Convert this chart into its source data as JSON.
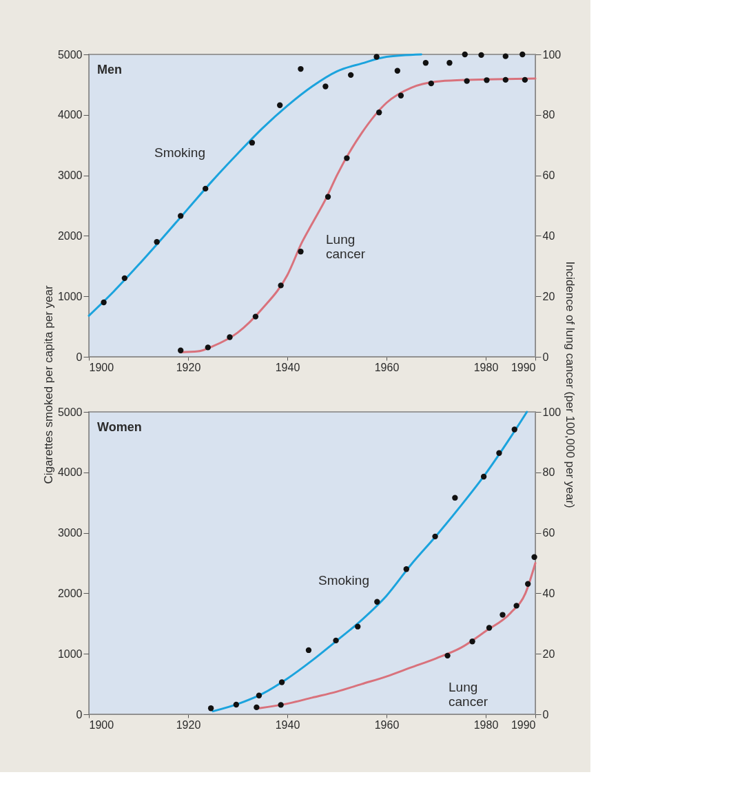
{
  "chart_data": [
    {
      "type": "line",
      "title": "Men",
      "ylabel": "Cigarettes smoked per capita per year",
      "y2label": "Incidence of lung cancer (per 100,000 per year)",
      "xlim": [
        1900,
        1990
      ],
      "xticks": [
        1900,
        1920,
        1940,
        1960,
        1980,
        1990
      ],
      "ylim": [
        0,
        5000
      ],
      "yticks": [
        0,
        1000,
        2000,
        3000,
        4000,
        5000
      ],
      "y2lim": [
        0,
        100
      ],
      "y2ticks": [
        0,
        20,
        40,
        60,
        80,
        100
      ],
      "grid": false,
      "line_style": "solid",
      "series": [
        {
          "name": "Smoking",
          "marker": "none",
          "color": "#1ba3dd",
          "x": [
            1900,
            1905,
            1910,
            1915,
            1920,
            1925,
            1930,
            1935,
            1940,
            1945,
            1950,
            1955,
            1960,
            1967
          ],
          "values": [
            680,
            1080,
            1520,
            1980,
            2450,
            2920,
            3360,
            3780,
            4150,
            4470,
            4720,
            4850,
            4960,
            5000
          ]
        },
        {
          "type": "scatter",
          "marker": "circle",
          "color": "#111111",
          "x": [
            1903,
            1907.2,
            1913.7,
            1918.5,
            1923.5,
            1932.9,
            1938.5,
            1942.7,
            1947.7,
            1952.8,
            1958,
            1962.2,
            1967.9,
            1972.7,
            1975.8,
            1979.1,
            1984,
            1987.4
          ],
          "values": [
            900,
            1300,
            1900,
            2330,
            2780,
            3540,
            4160,
            4760,
            4470,
            4660,
            4960,
            4730,
            4860,
            4860,
            5000,
            4990,
            4970,
            5000
          ]
        },
        {
          "name": "Lung cancer",
          "axis": "y2",
          "marker": "none",
          "color": "#d9727c",
          "x": [
            1918.5,
            1922,
            1925,
            1930,
            1935,
            1940,
            1943,
            1945,
            1948,
            1950,
            1955,
            1960,
            1965,
            1970,
            1975,
            1990
          ],
          "values": [
            1.5,
            1.8,
            3.5,
            8,
            16,
            27,
            38,
            44,
            53,
            60,
            74,
            84,
            89,
            91,
            91.5,
            92
          ]
        },
        {
          "type": "scatter",
          "axis": "y2",
          "marker": "circle",
          "color": "#111111",
          "x": [
            1918.5,
            1924,
            1928.4,
            1933.6,
            1938.7,
            1942.7,
            1948.2,
            1952,
            1958.5,
            1962.9,
            1969,
            1976.2,
            1980.2,
            1984,
            1987.9
          ],
          "values": [
            2.1,
            3.1,
            6.5,
            13.3,
            23.6,
            34.8,
            52.9,
            65.7,
            80.8,
            86.4,
            90.4,
            91.2,
            91.5,
            91.6,
            91.6
          ]
        }
      ]
    },
    {
      "type": "line",
      "title": "Women",
      "xlim": [
        1900,
        1990
      ],
      "xticks": [
        1900,
        1920,
        1940,
        1960,
        1980,
        1990
      ],
      "ylim": [
        0,
        5000
      ],
      "yticks": [
        0,
        1000,
        2000,
        3000,
        4000,
        5000
      ],
      "y2lim": [
        0,
        100
      ],
      "y2ticks": [
        0,
        20,
        40,
        60,
        80,
        100
      ],
      "grid": false,
      "line_style": "solid",
      "series": [
        {
          "name": "Smoking",
          "marker": "none",
          "color": "#1ba3dd",
          "x": [
            1925,
            1930,
            1935,
            1940,
            1945,
            1950,
            1955,
            1960,
            1965,
            1970,
            1975,
            1980,
            1985,
            1988.3
          ],
          "values": [
            50,
            170,
            340,
            590,
            890,
            1220,
            1560,
            1960,
            2480,
            2950,
            3450,
            3980,
            4580,
            5000
          ]
        },
        {
          "type": "scatter",
          "marker": "circle",
          "color": "#111111",
          "x": [
            1924.6,
            1929.7,
            1934.3,
            1938.9,
            1944.3,
            1949.8,
            1954.2,
            1958.1,
            1964,
            1969.8,
            1973.8,
            1979.6,
            1982.7,
            1985.8
          ],
          "values": [
            100,
            160,
            310,
            530,
            1060,
            1220,
            1450,
            1860,
            2400,
            2940,
            3580,
            3930,
            4320,
            4710
          ]
        },
        {
          "name": "Lung cancer",
          "axis": "y2",
          "marker": "none",
          "color": "#d9727c",
          "x": [
            1934.3,
            1940,
            1945,
            1950,
            1955,
            1960,
            1965,
            1970,
            1975,
            1980,
            1985,
            1988,
            1990
          ],
          "values": [
            2,
            3.5,
            5.5,
            7.5,
            10,
            12.5,
            15.5,
            18.5,
            22,
            27.5,
            33.5,
            40,
            50
          ]
        },
        {
          "type": "scatter",
          "axis": "y2",
          "marker": "circle",
          "color": "#111111",
          "x": [
            1933.8,
            1938.7,
            1972.3,
            1977.3,
            1980.7,
            1983.4,
            1986.2,
            1988.5,
            1989.8
          ],
          "values": [
            2.3,
            3.1,
            19.4,
            24.1,
            28.6,
            32.9,
            35.9,
            43.1,
            52
          ]
        }
      ]
    }
  ]
}
